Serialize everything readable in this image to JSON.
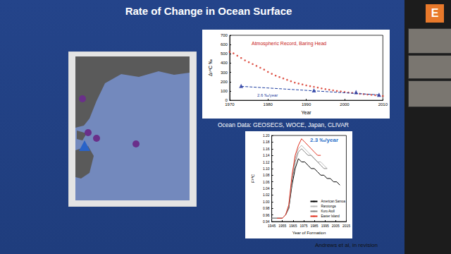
{
  "title": "Rate of Change in Ocean Surface",
  "participant_label": "E",
  "captions": [
    "Ocean Data: GEOSECS, WOCE, Japan, CLIVAR",
    "Andrews et al, in revision"
  ],
  "chart_data": [
    {
      "type": "scatter",
      "x_label": "Year",
      "y_label": "Δ¹⁴C ‰",
      "annotations": [
        "Atmospheric Record, Baring Head",
        "2.6 ‰/year"
      ],
      "xlim": [
        1970,
        2010
      ],
      "xticks": [
        1970,
        1980,
        1990,
        2000,
        2010
      ],
      "ylim": [
        0,
        700
      ],
      "yticks": [
        0,
        100,
        200,
        300,
        400,
        500,
        600,
        700
      ],
      "grid": false,
      "series": [
        {
          "type": "scatter",
          "color": "#d62a1c",
          "marker": "circle",
          "x": [
            1970,
            1971,
            1972,
            1973,
            1974,
            1975,
            1976,
            1977,
            1978,
            1979,
            1980,
            1981,
            1982,
            1983,
            1984,
            1985,
            1986,
            1987,
            1988,
            1989,
            1990,
            1991,
            1992,
            1993,
            1994,
            1995,
            1996,
            1997,
            1998,
            1999,
            2000,
            2001,
            2002,
            2003,
            2004,
            2005,
            2006,
            2007,
            2008,
            2009,
            2010
          ],
          "values": [
            520,
            505,
            480,
            455,
            430,
            410,
            390,
            370,
            350,
            330,
            305,
            285,
            265,
            250,
            235,
            220,
            205,
            190,
            180,
            170,
            160,
            152,
            145,
            137,
            128,
            120,
            113,
            107,
            100,
            95,
            90,
            84,
            80,
            75,
            70,
            66,
            62,
            58,
            54,
            50,
            46
          ]
        },
        {
          "type": "scatter",
          "color": "#1f2f9e",
          "marker": "triangle",
          "x": [
            1973,
            1992,
            2003,
            2009
          ],
          "values": [
            155,
            108,
            88,
            60
          ]
        },
        {
          "type": "line",
          "color": "#1f3fa0",
          "line_style": "dashed",
          "x": [
            1973,
            2009
          ],
          "values": [
            150,
            58
          ]
        }
      ]
    },
    {
      "type": "line",
      "x_label": "Year of Formation",
      "y_label": "F¹⁴C",
      "annotations": [
        "2.3 ‰/year"
      ],
      "xlim": [
        1945,
        2015
      ],
      "xticks": [
        1945,
        1955,
        1965,
        1975,
        1985,
        1995,
        2005,
        2015
      ],
      "ylim": [
        0.94,
        1.2
      ],
      "yticks": [
        0.94,
        0.96,
        0.98,
        {
          "value": 1,
          "label": "1.00"
        },
        1.02,
        1.04,
        1.06,
        1.08,
        {
          "value": 1.1,
          "label": "1.10"
        },
        1.12,
        1.14,
        1.16,
        1.18,
        {
          "value": 1.2,
          "label": "1.20"
        }
      ],
      "grid": false,
      "legend": "lower right",
      "series": [
        {
          "name": "American Samoa",
          "color": "#000000",
          "x": [
            1945,
            1950,
            1955,
            1958,
            1961,
            1964,
            1967,
            1970,
            1973,
            1976,
            1979,
            1982,
            1985,
            1988,
            1991,
            1994,
            1997,
            2000,
            2003,
            2006,
            2009
          ],
          "values": [
            0.95,
            0.95,
            0.95,
            0.96,
            0.98,
            1.05,
            1.1,
            1.13,
            1.12,
            1.12,
            1.11,
            1.1,
            1.1,
            1.09,
            1.08,
            1.08,
            1.07,
            1.07,
            1.06,
            1.06,
            1.05
          ]
        },
        {
          "name": "Rarotonga",
          "color": "#bbbbbb",
          "x": [
            1945,
            1950,
            1955,
            1958,
            1961,
            1964,
            1967,
            1970,
            1973,
            1976,
            1979,
            1982,
            1985,
            1988,
            1991,
            1994,
            1997,
            2000,
            2003,
            2006,
            2009
          ],
          "values": [
            0.95,
            0.95,
            0.95,
            0.96,
            0.99,
            1.07,
            1.13,
            1.16,
            1.17,
            1.16,
            1.15,
            1.14,
            1.13,
            1.12,
            1.12,
            1.11,
            1.1,
            null,
            null,
            null,
            null
          ]
        },
        {
          "name": "Kuro Atoll",
          "color": "#858585",
          "x": [
            1945,
            1950,
            1955,
            1958,
            1961,
            1964,
            1967,
            1970,
            1973,
            1976,
            1979,
            1982,
            1985,
            1988,
            1991,
            1994,
            1997,
            2000,
            2003,
            2006,
            2009
          ],
          "values": [
            0.95,
            0.95,
            0.95,
            0.96,
            0.98,
            1.06,
            1.12,
            1.15,
            1.16,
            1.15,
            1.14,
            1.14,
            1.13,
            1.12,
            1.11,
            1.1,
            1.1,
            null,
            null,
            null,
            null
          ]
        },
        {
          "name": "Easter Island",
          "color": "#e0301e",
          "x": [
            1945,
            1950,
            1955,
            1958,
            1961,
            1964,
            1967,
            1970,
            1973,
            1976,
            1979,
            1982,
            1985,
            1988,
            1991,
            1994,
            1997,
            2000,
            2003,
            2006,
            2009
          ],
          "values": [
            null,
            0.95,
            0.95,
            0.96,
            0.99,
            1.08,
            1.14,
            1.17,
            1.19,
            1.18,
            1.17,
            1.16,
            1.15,
            1.14,
            1.14,
            null,
            null,
            null,
            null,
            null,
            null
          ]
        }
      ]
    }
  ]
}
